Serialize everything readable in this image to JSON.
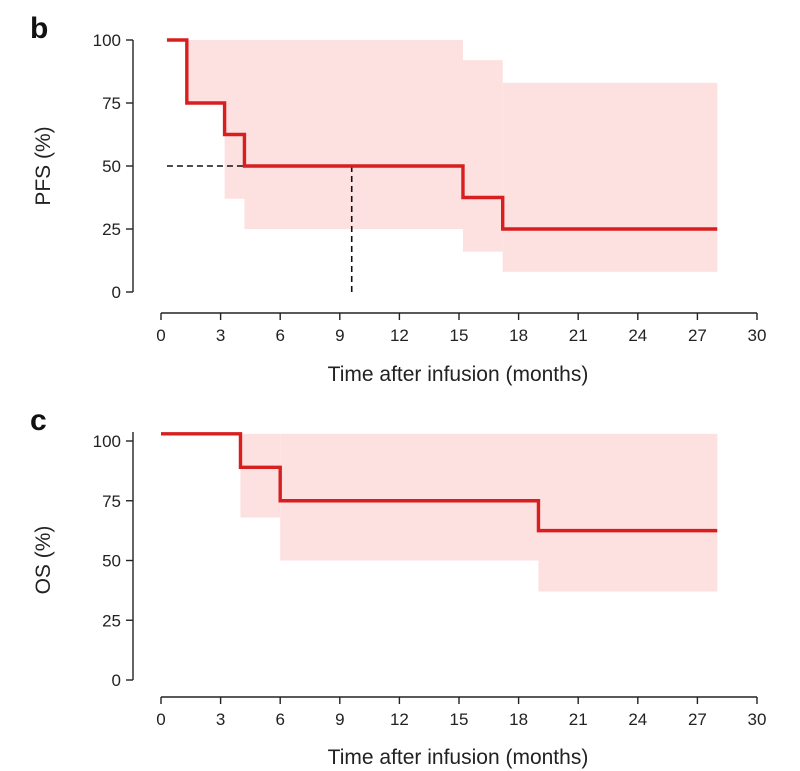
{
  "colors": {
    "line": "#d81e1e",
    "band": "#fde0e0",
    "axis": "#222222",
    "median": "#111111"
  },
  "chart_data": [
    {
      "type": "line",
      "panel_label": "b",
      "title": "",
      "xlabel": "Time after infusion (months)",
      "ylabel": "PFS (%)",
      "xlim": [
        0,
        30
      ],
      "ylim": [
        0,
        100
      ],
      "xticks": [
        "0",
        "3",
        "6",
        "9",
        "12",
        "15",
        "18",
        "21",
        "24",
        "27",
        "30"
      ],
      "yticks": [
        "0",
        "25",
        "50",
        "75",
        "100"
      ],
      "grid": false,
      "series": [
        {
          "name": "PFS",
          "step": true,
          "x": [
            0.3,
            1.3,
            3.2,
            4.2,
            15.2,
            17.2,
            28
          ],
          "y": [
            100,
            75,
            62.5,
            50,
            37.5,
            25,
            25
          ]
        }
      ],
      "confidence_band": {
        "x": [
          1.3,
          3.2,
          4.2,
          15.2,
          17.2,
          28
        ],
        "lower": [
          75,
          37,
          25,
          16,
          8,
          8
        ],
        "upper": [
          100,
          100,
          100,
          92,
          83,
          83
        ]
      },
      "median_marker": {
        "x": 9.6,
        "y": 50,
        "x_start": 0.3
      }
    },
    {
      "type": "line",
      "panel_label": "c",
      "title": "",
      "xlabel": "Time after infusion (months)",
      "ylabel": "OS (%)",
      "xlim": [
        0,
        30
      ],
      "ylim": [
        0,
        100
      ],
      "xticks": [
        "0",
        "3",
        "6",
        "9",
        "12",
        "15",
        "18",
        "21",
        "24",
        "27",
        "30"
      ],
      "yticks": [
        "0",
        "25",
        "50",
        "75",
        "100"
      ],
      "grid": false,
      "series": [
        {
          "name": "OS",
          "step": true,
          "x": [
            0,
            4,
            6,
            19,
            28
          ],
          "y": [
            103,
            89,
            75,
            62.5,
            62.5
          ]
        }
      ],
      "confidence_band": {
        "x": [
          4,
          6,
          19,
          28
        ],
        "lower": [
          68,
          50,
          37,
          37
        ],
        "upper": [
          103,
          103,
          103,
          103
        ]
      }
    }
  ]
}
